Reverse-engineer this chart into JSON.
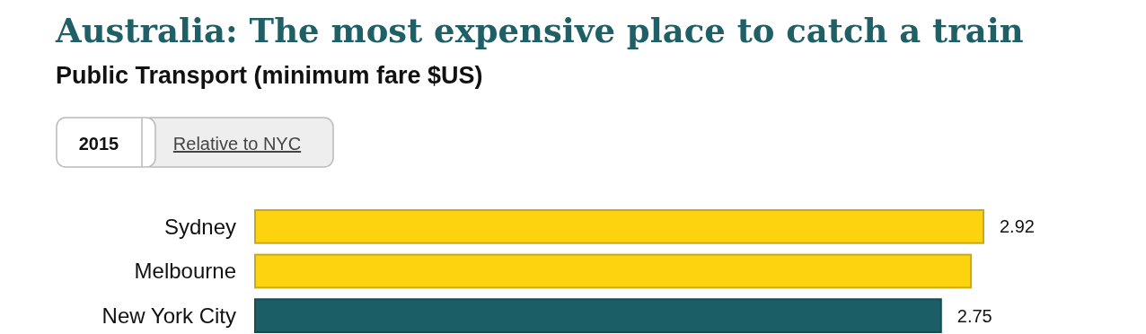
{
  "chart_data": {
    "type": "bar",
    "orientation": "horizontal",
    "title": "Australia: The most expensive place to catch a train",
    "subtitle": "Public Transport (minimum fare $US)",
    "annotations": [
      "2015",
      "Relative to NYC"
    ],
    "categories": [
      "Sydney",
      "Melbourne",
      "New York City"
    ],
    "values": [
      2.92,
      2.87,
      2.75
    ],
    "colors": [
      "#fdd20e",
      "#fdd20e",
      "#1b5e66"
    ],
    "value_labels": [
      "2.92",
      null,
      "2.75"
    ]
  }
}
